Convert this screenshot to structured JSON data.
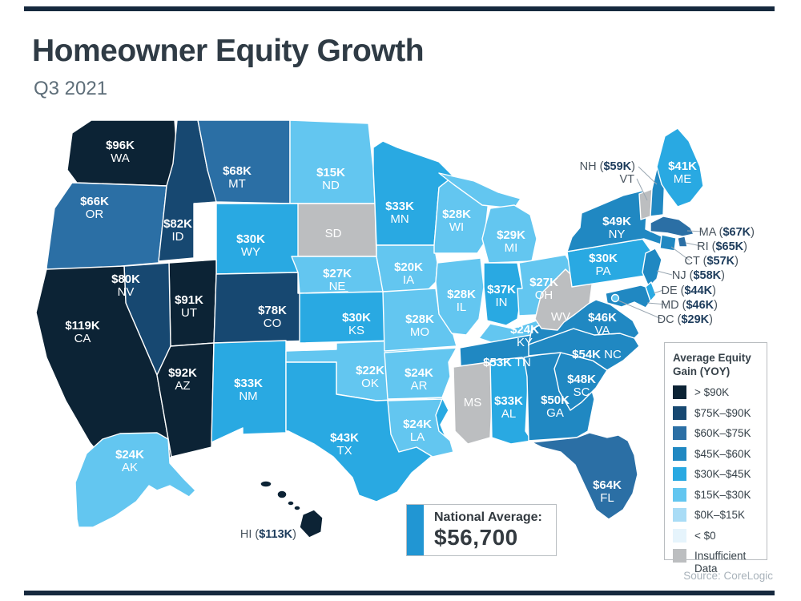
{
  "header": {
    "title": "Homeowner Equity Growth",
    "subtitle": "Q3 2021"
  },
  "chart_data": {
    "type": "heatmap",
    "title": "Homeowner Equity Growth",
    "subtitle": "Q3 2021",
    "legend_position": "right",
    "units": "USD (thousands), average equity gain year-over-year",
    "states": [
      {
        "code": "WA",
        "value": "$96K",
        "bucket": 0
      },
      {
        "code": "OR",
        "value": "$66K",
        "bucket": 2
      },
      {
        "code": "CA",
        "value": "$119K",
        "bucket": 0
      },
      {
        "code": "NV",
        "value": "$80K",
        "bucket": 1
      },
      {
        "code": "ID",
        "value": "$82K",
        "bucket": 1
      },
      {
        "code": "MT",
        "value": "$68K",
        "bucket": 2
      },
      {
        "code": "WY",
        "value": "$30K",
        "bucket": 4
      },
      {
        "code": "UT",
        "value": "$91K",
        "bucket": 0
      },
      {
        "code": "CO",
        "value": "$78K",
        "bucket": 1
      },
      {
        "code": "AZ",
        "value": "$92K",
        "bucket": 0
      },
      {
        "code": "NM",
        "value": "$33K",
        "bucket": 4
      },
      {
        "code": "ND",
        "value": "$15K",
        "bucket": 5
      },
      {
        "code": "SD",
        "value": "",
        "bucket": 8
      },
      {
        "code": "NE",
        "value": "$27K",
        "bucket": 5
      },
      {
        "code": "KS",
        "value": "$30K",
        "bucket": 4
      },
      {
        "code": "OK",
        "value": "$22K",
        "bucket": 5
      },
      {
        "code": "TX",
        "value": "$43K",
        "bucket": 4
      },
      {
        "code": "MN",
        "value": "$33K",
        "bucket": 4
      },
      {
        "code": "IA",
        "value": "$20K",
        "bucket": 5
      },
      {
        "code": "MO",
        "value": "$28K",
        "bucket": 5
      },
      {
        "code": "AR",
        "value": "$24K",
        "bucket": 5
      },
      {
        "code": "LA",
        "value": "$24K",
        "bucket": 5
      },
      {
        "code": "WI",
        "value": "$28K",
        "bucket": 5
      },
      {
        "code": "IL",
        "value": "$28K",
        "bucket": 5
      },
      {
        "code": "MI",
        "value": "$29K",
        "bucket": 5
      },
      {
        "code": "IN",
        "value": "$37K",
        "bucket": 4
      },
      {
        "code": "OH",
        "value": "$27K",
        "bucket": 5
      },
      {
        "code": "KY",
        "value": "$24K",
        "bucket": 5
      },
      {
        "code": "TN",
        "value": "$53K",
        "bucket": 3
      },
      {
        "code": "MS",
        "value": "",
        "bucket": 8
      },
      {
        "code": "AL",
        "value": "$33K",
        "bucket": 4
      },
      {
        "code": "GA",
        "value": "$50K",
        "bucket": 3
      },
      {
        "code": "FL",
        "value": "$64K",
        "bucket": 2
      },
      {
        "code": "SC",
        "value": "$48K",
        "bucket": 3
      },
      {
        "code": "NC",
        "value": "$54K",
        "bucket": 3
      },
      {
        "code": "VA",
        "value": "$46K",
        "bucket": 3
      },
      {
        "code": "WV",
        "value": "",
        "bucket": 8
      },
      {
        "code": "PA",
        "value": "$30K",
        "bucket": 4
      },
      {
        "code": "NY",
        "value": "$49K",
        "bucket": 3
      },
      {
        "code": "ME",
        "value": "$41K",
        "bucket": 4
      },
      {
        "code": "AK",
        "value": "$24K",
        "bucket": 5
      },
      {
        "code": "HI",
        "value": "$113K",
        "bucket": 0
      },
      {
        "code": "VT",
        "value": "",
        "bucket": 8
      },
      {
        "code": "NH",
        "value": "$59K",
        "bucket": 3
      },
      {
        "code": "MA",
        "value": "$67K",
        "bucket": 2
      },
      {
        "code": "RI",
        "value": "$65K",
        "bucket": 2
      },
      {
        "code": "CT",
        "value": "$57K",
        "bucket": 3
      },
      {
        "code": "NJ",
        "value": "$58K",
        "bucket": 3
      },
      {
        "code": "DE",
        "value": "$44K",
        "bucket": 4
      },
      {
        "code": "MD",
        "value": "$46K",
        "bucket": 3
      },
      {
        "code": "DC",
        "value": "$29K",
        "bucket": 5
      }
    ],
    "callouts": [
      {
        "code": "NH",
        "value": "$59K"
      },
      {
        "code": "VT",
        "value": ""
      },
      {
        "code": "MA",
        "value": "$67K"
      },
      {
        "code": "RI",
        "value": "$65K"
      },
      {
        "code": "CT",
        "value": "$57K"
      },
      {
        "code": "NJ",
        "value": "$58K"
      },
      {
        "code": "DE",
        "value": "$44K"
      },
      {
        "code": "MD",
        "value": "$46K"
      },
      {
        "code": "DC",
        "value": "$29K"
      },
      {
        "code": "HI",
        "value": "$113K"
      }
    ]
  },
  "legend": {
    "title_line1": "Average Equity",
    "title_line2": "Gain (YOY)",
    "entries": [
      {
        "label": "> $90K",
        "color": "#0C2335"
      },
      {
        "label": "$75K–$90K",
        "color": "#174871"
      },
      {
        "label": "$60K–$75K",
        "color": "#2B6FA5"
      },
      {
        "label": "$45K–$60K",
        "color": "#2088C2"
      },
      {
        "label": "$30K–$45K",
        "color": "#29A9E2"
      },
      {
        "label": "$15K–$30K",
        "color": "#63C6F0"
      },
      {
        "label": "$0K–$15K",
        "color": "#A9DCF6"
      },
      {
        "label": "< $0",
        "color": "#E6F4FC"
      },
      {
        "label": "Insufficient Data",
        "color": "#BCBEC0"
      }
    ]
  },
  "national_average": {
    "label": "National Average:",
    "value": "$56,700",
    "accent": "#2196D3"
  },
  "source": "Source: CoreLogic",
  "colors": {
    "rule": "#16293E",
    "title": "#2F3B45",
    "subtitle": "#5E6E79"
  }
}
